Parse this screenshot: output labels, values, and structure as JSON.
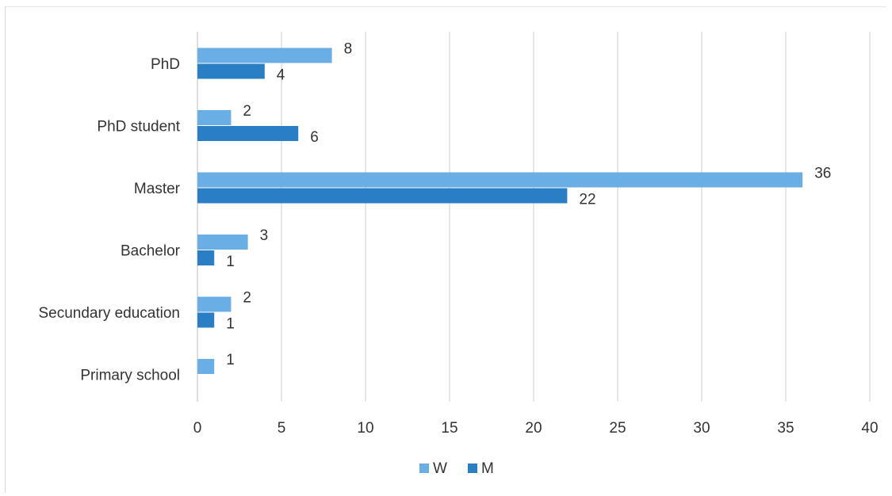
{
  "chart_data": {
    "type": "bar",
    "orientation": "horizontal",
    "title": "",
    "xlabel": "",
    "ylabel": "",
    "categories": [
      "PhD",
      "PhD student",
      "Master",
      "Bachelor",
      "Secundary education",
      "Primary school"
    ],
    "series": [
      {
        "name": "W",
        "values": [
          8,
          2,
          36,
          3,
          2,
          1
        ],
        "color": "#6aaee6"
      },
      {
        "name": "M",
        "values": [
          4,
          6,
          22,
          1,
          1,
          null
        ],
        "color": "#2a7fc4"
      }
    ],
    "xlim": [
      0,
      40
    ],
    "x_ticks": [
      "0",
      "5",
      "10",
      "15",
      "20",
      "25",
      "30",
      "35",
      "40"
    ],
    "grid": "vertical",
    "legend_position": "bottom",
    "data_labels": true
  }
}
